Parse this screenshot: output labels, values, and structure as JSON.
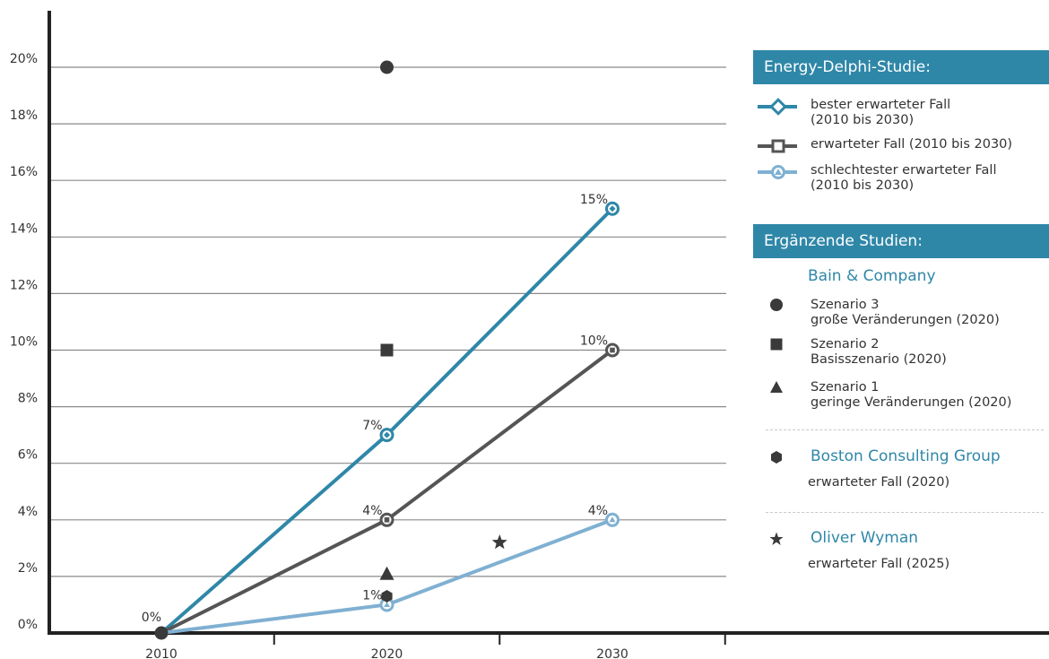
{
  "chart_data": {
    "type": "line",
    "x": [
      2010,
      2020,
      2030
    ],
    "x_tick_labels": [
      "2010",
      "2020",
      "2030"
    ],
    "ylim": [
      0,
      20
    ],
    "y_tick_labels": [
      "0%",
      "2%",
      "4%",
      "6%",
      "8%",
      "10%",
      "12%",
      "14%",
      "16%",
      "18%",
      "20%"
    ],
    "grid": true,
    "series": [
      {
        "name": "bester erwarteter Fall (2010 bis 2030)",
        "values": [
          0,
          7,
          15
        ],
        "labels": [
          "",
          "7%",
          "15%"
        ],
        "color": "#2f87a8",
        "marker": "diamond-open"
      },
      {
        "name": "erwarteter Fall (2010 bis 2030)",
        "values": [
          0,
          4,
          10
        ],
        "labels": [
          "",
          "4%",
          "10%"
        ],
        "color": "#555555",
        "marker": "square-open"
      },
      {
        "name": "schlechtester erwarteter Fall (2010 bis 2030)",
        "values": [
          0,
          1,
          4
        ],
        "labels": [
          "",
          "1%",
          "4%"
        ],
        "color": "#7fb0d2",
        "marker": "triangle-open"
      }
    ],
    "start_label": "0%",
    "points": [
      {
        "name": "Szenario 3 große Veränderungen (2020)",
        "x": 2020,
        "y": 20,
        "marker": "circle"
      },
      {
        "name": "Szenario 2 Basisszenario (2020)",
        "x": 2020,
        "y": 10,
        "marker": "square"
      },
      {
        "name": "Szenario 1 geringe Veränderungen (2020)",
        "x": 2020,
        "y": 2.1,
        "marker": "triangle"
      },
      {
        "name": "Boston Consulting Group erwarteter Fall (2020)",
        "x": 2020,
        "y": 1.3,
        "marker": "hexagon"
      },
      {
        "name": "Oliver Wyman erwarteter Fall (2025)",
        "x": 2025,
        "y": 3.2,
        "marker": "star"
      }
    ],
    "legend": {
      "placement": "right",
      "header_primary": "Energy-Delphi-Studie:",
      "primary_items": [
        {
          "line1": "bester erwarteter Fall",
          "line2": "(2010 bis 2030)",
          "color": "#2f87a8",
          "marker": "diamond-open"
        },
        {
          "line1": "erwarteter Fall (2010 bis 2030)",
          "line2": "",
          "color": "#555555",
          "marker": "square-open"
        },
        {
          "line1": "schlechtester erwarteter Fall",
          "line2": "(2010 bis 2030)",
          "color": "#7fb0d2",
          "marker": "triangle-open"
        }
      ],
      "header_secondary": "Ergänzende Studien:",
      "bain_name": "Bain & Company",
      "bain_items": [
        {
          "line1": "Szenario 3",
          "line2": "große Veränderungen (2020)",
          "marker": "circle"
        },
        {
          "line1": "Szenario 2",
          "line2": "Basisszenario (2020)",
          "marker": "square"
        },
        {
          "line1": "Szenario 1",
          "line2": "geringe Veränderungen (2020)",
          "marker": "triangle"
        }
      ],
      "bcg_name": "Boston Consulting Group",
      "bcg_sub": "erwarteter Fall (2020)",
      "wyman_name": "Oliver Wyman",
      "wyman_sub": "erwarteter Fall (2025)"
    },
    "colors": {
      "primary": "#2f87a8",
      "dark": "#555555",
      "light": "#7fb0d2",
      "marker": "#3a3a3a",
      "grid": "#8a8a8a"
    }
  }
}
